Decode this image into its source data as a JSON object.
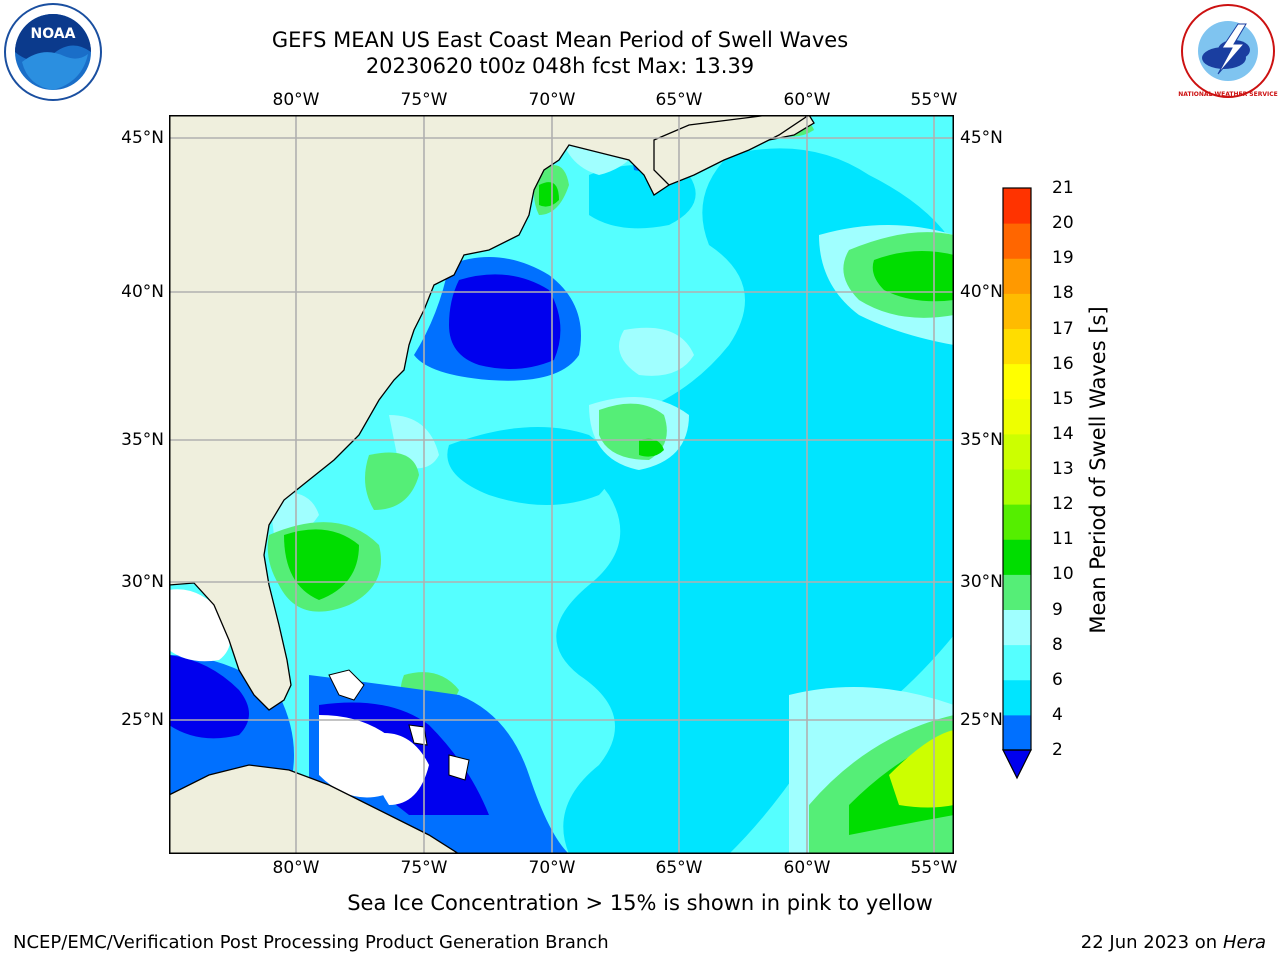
{
  "title_line1": "GEFS MEAN US East Coast Mean Period of Swell Waves",
  "title_line2": "20230620 t00z 048h fcst   Max: 13.39",
  "longitude_labels": [
    "80°W",
    "75°W",
    "70°W",
    "65°W",
    "60°W",
    "55°W"
  ],
  "latitude_labels": [
    "45°N",
    "40°N",
    "35°N",
    "30°N",
    "25°N"
  ],
  "map": {
    "lon_range": [
      -85,
      -54
    ],
    "lat_range": [
      20.5,
      46
    ],
    "grid_lons": [
      -80,
      -75,
      -70,
      -65,
      -60,
      -55
    ],
    "grid_lats": [
      45,
      40,
      35,
      30,
      25
    ]
  },
  "colorbar": {
    "label": "Mean Period of Swell Waves [s]",
    "ticks": [
      "2",
      "4",
      "6",
      "8",
      "9",
      "10",
      "11",
      "12",
      "13",
      "14",
      "15",
      "16",
      "17",
      "18",
      "19",
      "20",
      "21"
    ],
    "colors": [
      "#0070ff",
      "#00e5ff",
      "#55ffff",
      "#a0ffff",
      "#55ee77",
      "#00dd00",
      "#55ee00",
      "#aaff00",
      "#ccff00",
      "#eeff00",
      "#ffff00",
      "#ffdd00",
      "#ffbb00",
      "#ff9900",
      "#ff6600",
      "#ff3300",
      "#ff0000"
    ],
    "under_color": "#0000ee"
  },
  "colors": {
    "land": "#efefdd",
    "background_ocean": "#55ffff",
    "gridline": "#b0b0b0"
  },
  "sea_ice_note": "Sea Ice Concentration > 15% is shown in pink to yellow",
  "footer_left": "NCEP/EMC/Verification Post Processing Product Generation Branch",
  "footer_date": "22 Jun 2023 on",
  "footer_machine": "Hera",
  "logo_left_text": "NOAA",
  "logo_right_text": "NATIONAL WEATHER SERVICE"
}
